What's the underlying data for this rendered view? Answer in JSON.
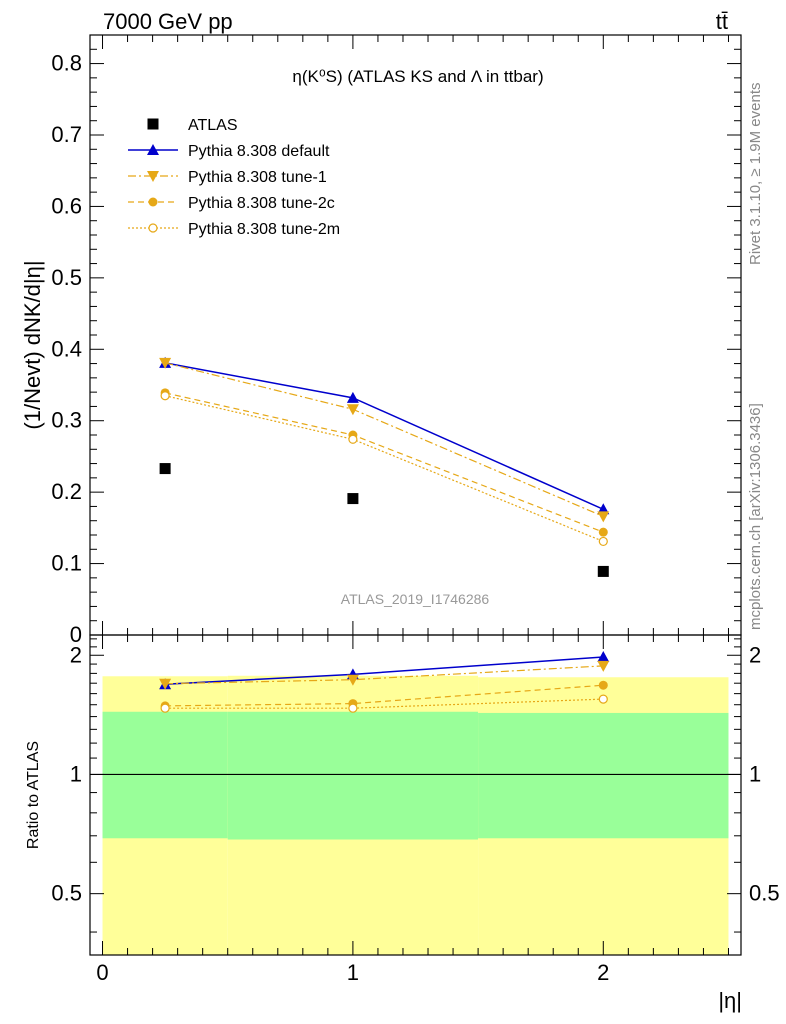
{
  "header": {
    "left": "7000 GeV pp",
    "right": "tt̄"
  },
  "side_text": {
    "rivet": "Rivet 3.1.10, ≥ 1.9M events",
    "mcplots": "mcplots.cern.ch [arXiv:1306.3436]"
  },
  "watermark": "ATLAS_2019_I1746286",
  "colors": {
    "atlas": "#000000",
    "default": "#0000cc",
    "tunes": "#e6a817",
    "band_inner": "#99ff99",
    "band_outer": "#ffff99"
  },
  "chart_data": [
    {
      "type": "scatter",
      "title": "η(K⁰S) (ATLAS KS and Λ in ttbar)",
      "ylabel": "(1/Nevt) dNK/d|η|",
      "xlabel": "|η|",
      "xlim": [
        -0.05,
        2.55
      ],
      "ylim": [
        0,
        0.84
      ],
      "y_ticks": [
        "0",
        "0.1",
        "0.2",
        "0.3",
        "0.4",
        "0.5",
        "0.6",
        "0.7",
        "0.8"
      ],
      "x": [
        0.25,
        1.0,
        2.0
      ],
      "x_bins": [
        [
          0,
          0.5
        ],
        [
          0.5,
          1.5
        ],
        [
          1.5,
          2.5
        ]
      ],
      "legend_position": "top-left",
      "series": [
        {
          "name": "ATLAS",
          "marker": "square",
          "line": "none",
          "values": [
            0.233,
            0.191,
            0.089
          ]
        },
        {
          "name": "Pythia 8.308 default",
          "marker": "triangle-up",
          "line": "solid",
          "values": [
            0.381,
            0.332,
            0.176
          ]
        },
        {
          "name": "Pythia 8.308 tune-1",
          "marker": "triangle-down",
          "line": "dashdot",
          "values": [
            0.381,
            0.316,
            0.166
          ]
        },
        {
          "name": "Pythia 8.308 tune-2c",
          "marker": "circle",
          "line": "dashed",
          "values": [
            0.339,
            0.28,
            0.144
          ]
        },
        {
          "name": "Pythia 8.308 tune-2m",
          "marker": "open-circle",
          "line": "dotted",
          "values": [
            0.335,
            0.274,
            0.131
          ]
        }
      ]
    },
    {
      "type": "scatter",
      "ylabel": "Ratio to ATLAS",
      "xlabel": "|η|",
      "xlim": [
        -0.05,
        2.55
      ],
      "ylim": [
        0.35,
        2.25
      ],
      "y_ticks": [
        "0.5",
        "1",
        "2"
      ],
      "x_ticks": [
        "0",
        "1",
        "2"
      ],
      "reference_line": 1,
      "bands": [
        {
          "x": [
            0,
            0.5
          ],
          "inner": [
            0.69,
            1.44
          ],
          "outer": [
            0.35,
            1.77
          ]
        },
        {
          "x": [
            0.5,
            1.5
          ],
          "inner": [
            0.685,
            1.44
          ],
          "outer": [
            0.35,
            1.775
          ]
        },
        {
          "x": [
            1.5,
            2.5
          ],
          "inner": [
            0.69,
            1.43
          ],
          "outer": [
            0.35,
            1.76
          ]
        }
      ],
      "series": [
        {
          "name": "Pythia 8.308 default",
          "values": [
            1.69,
            1.79,
            1.98
          ]
        },
        {
          "name": "Pythia 8.308 tune-1",
          "values": [
            1.695,
            1.735,
            1.88
          ]
        },
        {
          "name": "Pythia 8.308 tune-2c",
          "values": [
            1.49,
            1.51,
            1.68
          ]
        },
        {
          "name": "Pythia 8.308 tune-2m",
          "values": [
            1.47,
            1.47,
            1.55
          ]
        }
      ]
    }
  ]
}
